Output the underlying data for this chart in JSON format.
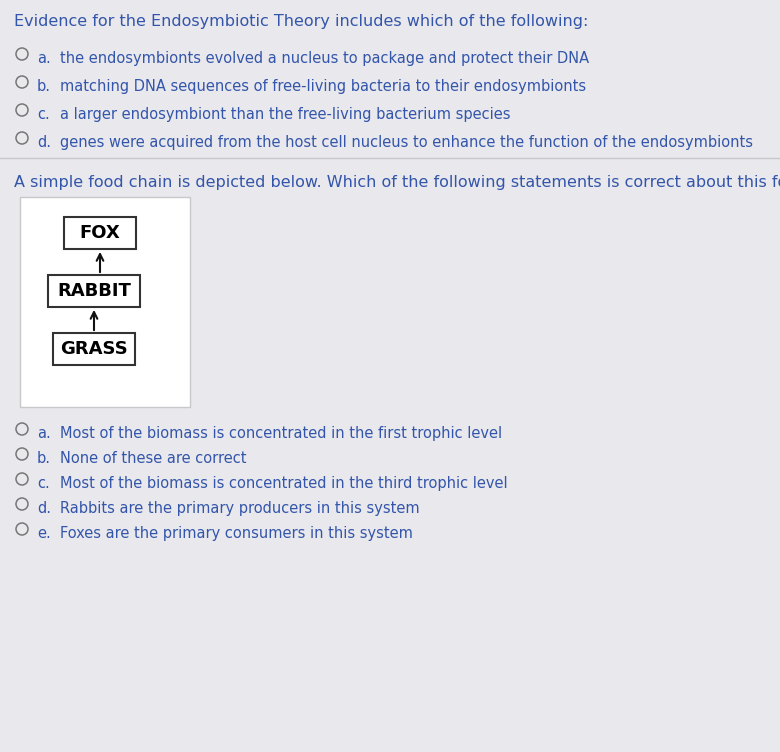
{
  "bg_color": "#e8e8ed",
  "white_bg": "#ffffff",
  "text_color_blue": "#3355aa",
  "q1_title": "Evidence for the Endosymbiotic Theory includes which of the following:",
  "q1_options": [
    [
      "a.",
      "the endosymbionts evolved a nucleus to package and protect their DNA"
    ],
    [
      "b.",
      "matching DNA sequences of free-living bacteria to their endosymbionts"
    ],
    [
      "c.",
      "a larger endosymbiont than the free-living bacterium species"
    ],
    [
      "d.",
      "genes were acquired from the host cell nucleus to enhance the function of the endosymbionts"
    ]
  ],
  "q2_title": "A simple food chain is depicted below. Which of the following statements is correct about this food chain?",
  "food_chain": [
    "FOX",
    "RABBIT",
    "GRASS"
  ],
  "q2_options": [
    [
      "a.",
      "Most of the biomass is concentrated in the first trophic level"
    ],
    [
      "b.",
      "None of these are correct"
    ],
    [
      "c.",
      "Most of the biomass is concentrated in the third trophic level"
    ],
    [
      "d.",
      "Rabbits are the primary producers in this system"
    ],
    [
      "e.",
      "Foxes are the primary consumers in this system"
    ]
  ],
  "separator_color": "#c8c8cc",
  "circle_color": "#777777",
  "arrow_color": "#111111",
  "box_color": "#333333",
  "title_fontsize": 11.5,
  "option_fontsize": 10.5,
  "diagram_fontsize": 13
}
